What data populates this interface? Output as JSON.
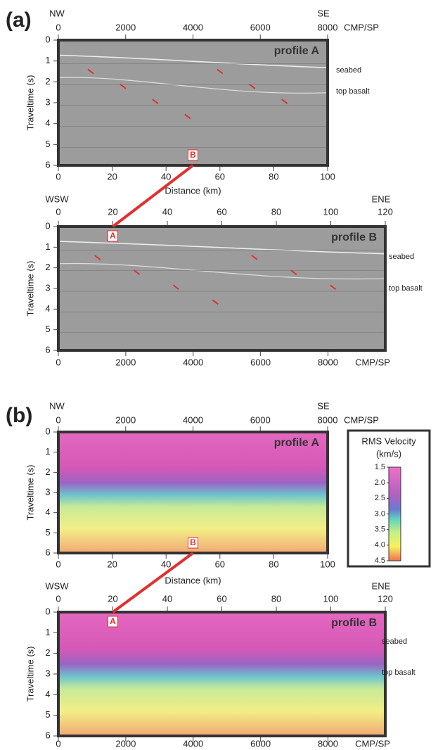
{
  "panels": [
    {
      "id_label": "(a)",
      "profile_a": {
        "title": "profile A",
        "left_dir": "NW",
        "right_dir": "SE",
        "top_axis": {
          "unit": "CMP/SP",
          "lim": [
            0,
            8000
          ],
          "ticks": [
            0,
            2000,
            4000,
            6000,
            8000
          ]
        },
        "bottom_axis": {
          "label": "Distance (km)",
          "lim": [
            0,
            100
          ],
          "ticks": [
            0,
            20,
            40,
            60,
            80,
            100
          ]
        },
        "y_axis": {
          "label": "Traveltime (s)",
          "lim": [
            0,
            6
          ],
          "ticks": [
            0,
            1,
            2,
            3,
            4,
            5,
            6
          ]
        },
        "annotations": [
          "seabed",
          "top basalt"
        ],
        "marker": "B"
      },
      "profile_b": {
        "title": "profile B",
        "left_dir": "WSW",
        "right_dir": "ENE",
        "top_axis": {
          "lim": [
            0,
            120
          ],
          "ticks": [
            0,
            20,
            40,
            60,
            80,
            100,
            120
          ]
        },
        "bottom_axis": {
          "unit": "CMP/SP",
          "lim": [
            0,
            9700
          ],
          "ticks": [
            0,
            2000,
            4000,
            6000,
            8000
          ]
        },
        "y_axis": {
          "label": "Traveltime (s)",
          "lim": [
            0,
            6
          ],
          "ticks": [
            0,
            1,
            2,
            3,
            4,
            5,
            6
          ]
        },
        "annotations": [
          "seabed",
          "top basalt"
        ],
        "marker": "A"
      }
    },
    {
      "id_label": "(b)",
      "profile_a": {
        "title": "profile A",
        "left_dir": "NW",
        "right_dir": "SE",
        "top_axis": {
          "unit": "CMP/SP",
          "lim": [
            0,
            8000
          ],
          "ticks": [
            0,
            2000,
            4000,
            6000,
            8000
          ]
        },
        "bottom_axis": {
          "label": "Distance (km)",
          "lim": [
            0,
            100
          ],
          "ticks": [
            0,
            20,
            40,
            60,
            80,
            100
          ]
        },
        "y_axis": {
          "label": "Traveltime (s)",
          "lim": [
            0,
            6
          ],
          "ticks": [
            0,
            1,
            2,
            3,
            4,
            5,
            6
          ]
        },
        "annotations": [],
        "marker": "B"
      },
      "profile_b": {
        "title": "profile B",
        "left_dir": "WSW",
        "right_dir": "ENE",
        "top_axis": {
          "lim": [
            0,
            120
          ],
          "ticks": [
            0,
            20,
            40,
            60,
            80,
            100,
            120
          ]
        },
        "bottom_axis": {
          "unit": "CMP/SP",
          "lim": [
            0,
            9700
          ],
          "ticks": [
            0,
            2000,
            4000,
            6000,
            8000
          ]
        },
        "y_axis": {
          "label": "Traveltime (s)",
          "lim": [
            0,
            6
          ],
          "ticks": [
            0,
            1,
            2,
            3,
            4,
            5,
            6
          ]
        },
        "annotations": [
          "seabed",
          "top basalt"
        ],
        "marker": "A"
      },
      "colorbar": {
        "title": "RMS Velocity",
        "unit": "(km/s)",
        "lim": [
          1.5,
          4.5
        ],
        "ticks": [
          1.5,
          {
            "value": 2,
            "label": "2.0"
          },
          2.5,
          {
            "value": 3,
            "label": "3.0"
          },
          3.5,
          {
            "value": 4,
            "label": "4.0"
          },
          4.5
        ]
      }
    }
  ]
}
